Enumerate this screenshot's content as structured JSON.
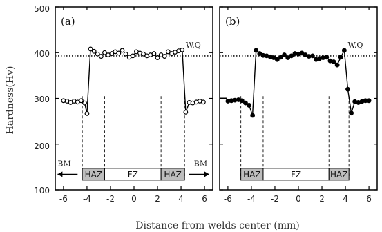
{
  "chart_data": {
    "type": "line",
    "ylabel": "Hardness(Hv)",
    "xlabel": "Distance from welds center (mm)",
    "ylim": [
      100,
      500
    ],
    "yticks": [
      "100",
      "200",
      "300",
      "400",
      "500"
    ],
    "xlim": [
      -6.7,
      6.7
    ],
    "xticks": [
      "-6",
      "-4",
      "-2",
      "0",
      "2",
      "4",
      "6"
    ],
    "reference_value": 393,
    "zone_labels": {
      "haz": "HAZ",
      "fz": "FZ"
    },
    "panels": [
      {
        "label": "(a)",
        "marker": "open-circle",
        "reference_label": "W.Q",
        "bm_label": "BM",
        "zones": [
          {
            "label": "HAZ",
            "from": -4.4,
            "to": -2.5
          },
          {
            "label": "FZ",
            "from": -2.5,
            "to": 2.3
          },
          {
            "label": "HAZ",
            "from": 2.3,
            "to": 4.3
          }
        ],
        "x": [
          -6.0,
          -5.7,
          -5.4,
          -5.1,
          -4.8,
          -4.5,
          -4.2,
          -4.0,
          -3.7,
          -3.4,
          -3.1,
          -2.8,
          -2.5,
          -2.2,
          -1.9,
          -1.6,
          -1.3,
          -1.0,
          -0.7,
          -0.4,
          -0.1,
          0.2,
          0.5,
          0.8,
          1.1,
          1.4,
          1.7,
          2.0,
          2.3,
          2.6,
          2.9,
          3.2,
          3.5,
          3.8,
          4.1,
          4.4,
          4.7,
          5.0,
          5.3,
          5.6,
          5.9
        ],
        "y": [
          295,
          294,
          291,
          294,
          292,
          295,
          290,
          267,
          408,
          403,
          397,
          392,
          400,
          395,
          398,
          402,
          399,
          405,
          397,
          390,
          393,
          402,
          399,
          397,
          393,
          395,
          398,
          389,
          395,
          392,
          402,
          398,
          401,
          404,
          406,
          270,
          291,
          290,
          292,
          294,
          292
        ]
      },
      {
        "label": "(b)",
        "marker": "filled-circle",
        "reference_label": "W.Q",
        "zones": [
          {
            "label": "HAZ",
            "from": -4.9,
            "to": -3.0
          },
          {
            "label": "FZ",
            "from": -3.0,
            "to": 2.6
          },
          {
            "label": "HAZ",
            "from": 2.6,
            "to": 4.3
          }
        ],
        "x": [
          -6.0,
          -5.7,
          -5.4,
          -5.1,
          -4.8,
          -4.5,
          -4.2,
          -3.9,
          -3.6,
          -3.3,
          -3.0,
          -2.7,
          -2.4,
          -2.1,
          -1.8,
          -1.5,
          -1.2,
          -0.9,
          -0.6,
          -0.3,
          0.0,
          0.3,
          0.6,
          0.9,
          1.2,
          1.5,
          1.8,
          2.1,
          2.4,
          2.7,
          3.0,
          3.3,
          3.6,
          3.9,
          4.2,
          4.5,
          4.8,
          5.1,
          5.4,
          5.7,
          6.0
        ],
        "y": [
          294,
          295,
          296,
          297,
          295,
          290,
          285,
          263,
          405,
          398,
          394,
          393,
          391,
          389,
          385,
          390,
          395,
          389,
          393,
          398,
          397,
          399,
          395,
          392,
          393,
          385,
          387,
          389,
          390,
          382,
          380,
          373,
          390,
          405,
          320,
          268,
          293,
          291,
          293,
          295,
          295
        ]
      }
    ]
  }
}
